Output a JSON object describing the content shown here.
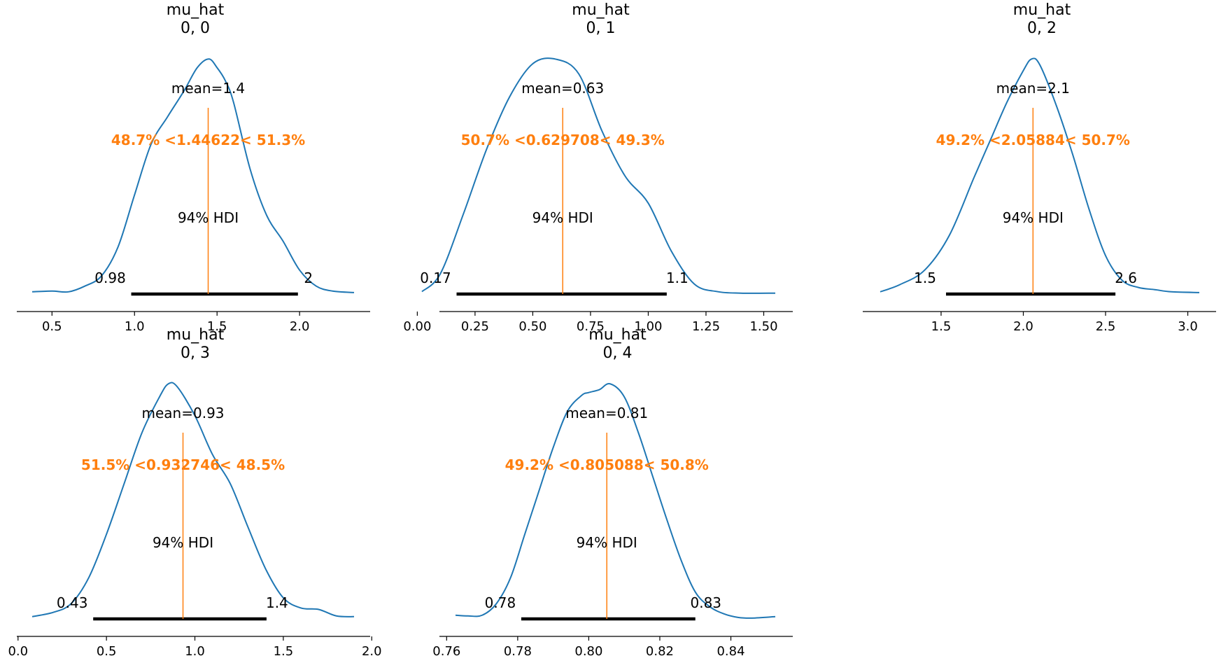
{
  "chart_data": [
    {
      "type": "line",
      "title": "mu_hat\n0, 0",
      "title_lines": [
        "mu_hat",
        "0, 0"
      ],
      "xlim": [
        0.35,
        2.35
      ],
      "xticks": [
        0.5,
        1.0,
        1.5,
        2.0
      ],
      "xtick_labels": [
        "0.5",
        "1.0",
        "1.5",
        "2.0"
      ],
      "density": {
        "x": [
          0.38,
          0.5,
          0.6,
          0.7,
          0.8,
          0.9,
          1.0,
          1.1,
          1.2,
          1.3,
          1.38,
          1.45,
          1.5,
          1.55,
          1.6,
          1.7,
          1.8,
          1.9,
          2.0,
          2.1,
          2.2,
          2.33
        ],
        "y": [
          0.03,
          0.035,
          0.03,
          0.07,
          0.14,
          0.34,
          0.7,
          1.05,
          1.24,
          1.42,
          1.58,
          1.64,
          1.58,
          1.49,
          1.34,
          0.88,
          0.56,
          0.38,
          0.18,
          0.07,
          0.035,
          0.025
        ]
      },
      "ymax": 1.68,
      "mean_label": "mean=1.4",
      "point_estimate": 1.44622,
      "prob_label": "48.7% <1.44622< 51.3%",
      "hdi_label": "94% HDI",
      "hdi": [
        0.98,
        1.99
      ],
      "hdi_labels": [
        "0.98",
        "2"
      ]
    },
    {
      "type": "line",
      "title": "mu_hat\n0, 1",
      "title_lines": [
        "mu_hat",
        "0, 1"
      ],
      "xlim": [
        -0.05,
        1.6
      ],
      "xticks": [
        0.0,
        0.25,
        0.5,
        0.75,
        1.0,
        1.25,
        1.5
      ],
      "xtick_labels": [
        "0.00",
        "0.25",
        "0.50",
        "0.75",
        "1.00",
        "1.25",
        "1.50"
      ],
      "density": {
        "x": [
          0.02,
          0.1,
          0.2,
          0.3,
          0.4,
          0.5,
          0.6,
          0.7,
          0.8,
          0.9,
          1.0,
          1.1,
          1.2,
          1.3,
          1.4,
          1.55
        ],
        "y": [
          0.03,
          0.15,
          0.55,
          0.98,
          1.33,
          1.55,
          1.58,
          1.48,
          1.1,
          0.8,
          0.62,
          0.3,
          0.08,
          0.03,
          0.02,
          0.02
        ]
      },
      "ymax": 1.62,
      "mean_label": "mean=0.63",
      "point_estimate": 0.629708,
      "prob_label": "50.7% <0.629708< 49.3%",
      "hdi_label": "94% HDI",
      "hdi": [
        0.17,
        1.08
      ],
      "hdi_labels": [
        "0.17",
        "1.1"
      ]
    },
    {
      "type": "line",
      "title": "mu_hat\n0, 2",
      "title_lines": [
        "mu_hat",
        "0, 2"
      ],
      "xlim": [
        1.1,
        3.15
      ],
      "xticks": [
        1.5,
        2.0,
        2.5,
        3.0
      ],
      "xtick_labels": [
        "1.5",
        "2.0",
        "2.5",
        "3.0"
      ],
      "density": {
        "x": [
          1.13,
          1.25,
          1.4,
          1.55,
          1.7,
          1.8,
          1.9,
          2.0,
          2.05,
          2.1,
          2.2,
          2.3,
          2.4,
          2.5,
          2.6,
          2.7,
          2.8,
          2.9,
          3.07
        ],
        "y": [
          0.03,
          0.08,
          0.18,
          0.42,
          0.82,
          1.08,
          1.34,
          1.56,
          1.64,
          1.6,
          1.32,
          0.98,
          0.6,
          0.28,
          0.11,
          0.06,
          0.045,
          0.03,
          0.025
        ]
      },
      "ymax": 1.68,
      "mean_label": "mean=2.1",
      "point_estimate": 2.05884,
      "prob_label": "49.2% <2.05884< 50.7%",
      "hdi_label": "94% HDI",
      "hdi": [
        1.53,
        2.56
      ],
      "hdi_labels": [
        "1.5",
        "2.6"
      ]
    },
    {
      "type": "line",
      "title": "mu_hat\n0, 3",
      "title_lines": [
        "mu_hat",
        "0, 3"
      ],
      "xlim": [
        0.0,
        2.0
      ],
      "xticks": [
        0.0,
        0.5,
        1.0,
        1.5,
        2.0
      ],
      "xtick_labels": [
        "0.0",
        "0.5",
        "1.0",
        "1.5",
        "2.0"
      ],
      "density": {
        "x": [
          0.08,
          0.2,
          0.3,
          0.4,
          0.5,
          0.6,
          0.7,
          0.8,
          0.85,
          0.9,
          1.0,
          1.1,
          1.2,
          1.3,
          1.4,
          1.5,
          1.6,
          1.7,
          1.8,
          1.9
        ],
        "y": [
          0.03,
          0.06,
          0.12,
          0.3,
          0.6,
          0.95,
          1.3,
          1.55,
          1.64,
          1.62,
          1.42,
          1.15,
          0.95,
          0.65,
          0.36,
          0.16,
          0.09,
          0.08,
          0.035,
          0.03
        ]
      },
      "ymax": 1.68,
      "mean_label": "mean=0.93",
      "point_estimate": 0.932746,
      "prob_label": "51.5% <0.932746< 48.5%",
      "hdi_label": "94% HDI",
      "hdi": [
        0.425,
        1.405
      ],
      "hdi_labels": [
        "0.43",
        "1.4"
      ]
    },
    {
      "type": "line",
      "title": "mu_hat\n0, 4",
      "title_lines": [
        "mu_hat",
        "0, 4"
      ],
      "xlim": [
        0.759,
        0.855
      ],
      "xticks": [
        0.76,
        0.78,
        0.8,
        0.82,
        0.84
      ],
      "xtick_labels": [
        "0.76",
        "0.78",
        "0.80",
        "0.82",
        "0.84"
      ],
      "density": {
        "x": [
          0.7625,
          0.766,
          0.77,
          0.774,
          0.778,
          0.782,
          0.786,
          0.79,
          0.794,
          0.798,
          0.8,
          0.803,
          0.806,
          0.81,
          0.814,
          0.818,
          0.822,
          0.826,
          0.83,
          0.834,
          0.838,
          0.842,
          0.846,
          0.8525
        ],
        "y": [
          0.04,
          0.035,
          0.04,
          0.12,
          0.3,
          0.6,
          0.9,
          1.2,
          1.45,
          1.56,
          1.58,
          1.6,
          1.64,
          1.55,
          1.3,
          1.0,
          0.7,
          0.42,
          0.2,
          0.1,
          0.05,
          0.025,
          0.02,
          0.03
        ]
      },
      "ymax": 1.68,
      "mean_label": "mean=0.81",
      "point_estimate": 0.805088,
      "prob_label": "49.2% <0.805088< 50.8%",
      "hdi_label": "94% HDI",
      "hdi": [
        0.781,
        0.83
      ],
      "hdi_labels": [
        "0.78",
        "0.83"
      ]
    }
  ],
  "colors": {
    "density": "#1f77b4",
    "point_estimate": "#ff7f0e",
    "hdi": "#000000",
    "text": "#000000",
    "axis": "#000000"
  }
}
